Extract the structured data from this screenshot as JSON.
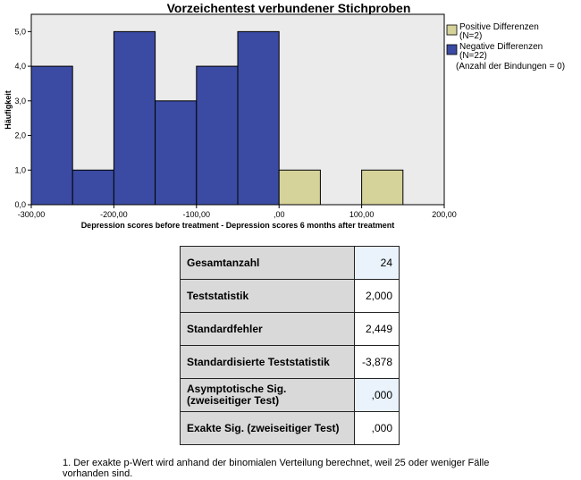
{
  "chart_data": {
    "type": "bar",
    "title": "Vorzeichentest verbundener Stichproben",
    "xlabel": "Depression scores before treatment - Depression scores 6 months after treatment",
    "ylabel": "Häufigkeit",
    "xlim": [
      -300,
      200
    ],
    "ylim": [
      0,
      5.5
    ],
    "x_tick_values": [
      -300,
      -200,
      -100,
      0,
      100,
      200
    ],
    "x_tick_labels": [
      "-300,00",
      "-200,00",
      "-100,00",
      ",00",
      "100,00",
      "200,00"
    ],
    "y_tick_values": [
      0,
      1,
      2,
      3,
      4,
      5
    ],
    "y_tick_labels": [
      "0,0",
      "1,0",
      "2,0",
      "3,0",
      "4,0",
      "5,0"
    ],
    "grid": false,
    "legend_position": "right",
    "bin_width": 50,
    "series": [
      {
        "name": "Negative Differenzen",
        "name_detail": "(N=22)",
        "color": "#3b4ba3",
        "bins": [
          {
            "x0": -300,
            "x1": -250,
            "value": 4
          },
          {
            "x0": -250,
            "x1": -200,
            "value": 1
          },
          {
            "x0": -200,
            "x1": -150,
            "value": 5
          },
          {
            "x0": -150,
            "x1": -100,
            "value": 3
          },
          {
            "x0": -100,
            "x1": -50,
            "value": 4
          },
          {
            "x0": -50,
            "x1": 0,
            "value": 5
          }
        ]
      },
      {
        "name": "Positive Differenzen",
        "name_detail": "(N=2)",
        "color": "#d5d29a",
        "bins": [
          {
            "x0": 0,
            "x1": 50,
            "value": 1
          },
          {
            "x0": 100,
            "x1": 150,
            "value": 1
          }
        ]
      }
    ],
    "legend_note": "(Anzahl der Bindungen = 0)",
    "plot_background": "#ebebeb"
  },
  "table": {
    "rows": [
      {
        "label": "Gesamtanzahl",
        "value": "24"
      },
      {
        "label": "Teststatistik",
        "value": "2,000"
      },
      {
        "label": "Standardfehler",
        "value": "2,449"
      },
      {
        "label": "Standardisierte Teststatistik",
        "value": "-3,878"
      },
      {
        "label": "Asymptotische Sig.\n(zweiseitiger Test)",
        "value": ",000"
      },
      {
        "label": "Exakte Sig. (zweiseitiger Test)",
        "value": ",000"
      }
    ]
  },
  "footnote": "1.  Der exakte p-Wert wird anhand der binomialen Verteilung berechnet, weil 25 oder weniger Fälle vorhanden sind."
}
